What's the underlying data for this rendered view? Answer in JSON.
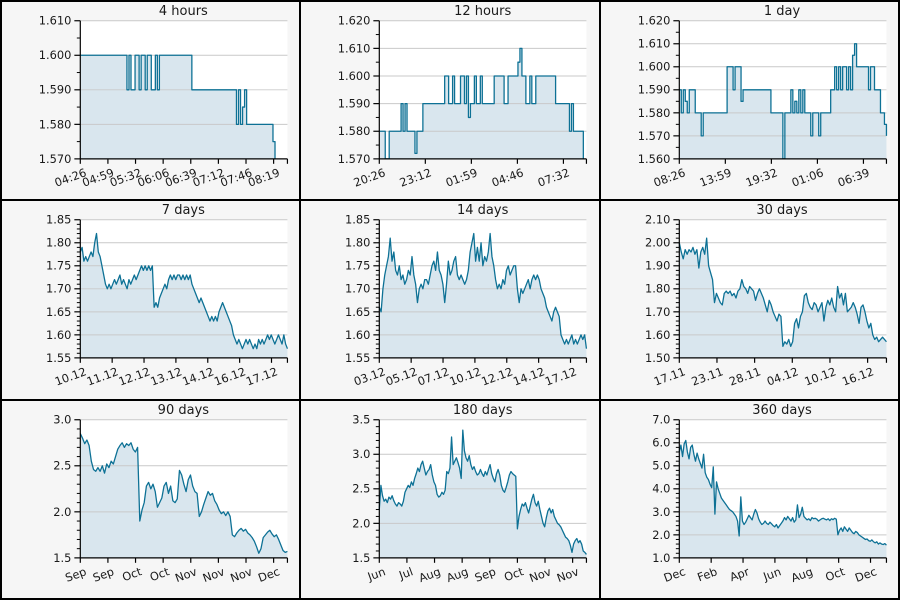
{
  "style": {
    "background": "#f6f6f6",
    "plot_background": "#ffffff",
    "line_color": "#0d7195",
    "fill_color": "#d9e6ee",
    "grid_color": "#c9c9c9",
    "axis_color": "#000000",
    "border_color": "#000000",
    "text_color": "#1a1a1a"
  },
  "chart_data": [
    {
      "type": "area",
      "title": "4 hours",
      "step": true,
      "y_min": 1.57,
      "y_max": 1.61,
      "y_ticks": [
        1.57,
        1.58,
        1.59,
        1.6,
        1.61
      ],
      "y_tick_labels": [
        "1.570",
        "1.580",
        "1.590",
        "1.600",
        "1.610"
      ],
      "y_minor_per_major": 1,
      "x_labels": [
        "04:26",
        "04:59",
        "05:32",
        "06:06",
        "06:39",
        "07:12",
        "07:46",
        "08:19"
      ],
      "x_end": 0.94,
      "grid": "horizontal",
      "values": [
        1.6,
        1.6,
        1.6,
        1.6,
        1.6,
        1.6,
        1.6,
        1.6,
        1.6,
        1.6,
        1.6,
        1.6,
        1.6,
        1.6,
        1.6,
        1.6,
        1.6,
        1.6,
        1.6,
        1.6,
        1.6,
        1.6,
        1.6,
        1.59,
        1.6,
        1.59,
        1.59,
        1.6,
        1.6,
        1.59,
        1.6,
        1.6,
        1.59,
        1.6,
        1.6,
        1.59,
        1.59,
        1.6,
        1.59,
        1.6,
        1.6,
        1.6,
        1.6,
        1.6,
        1.6,
        1.6,
        1.6,
        1.6,
        1.6,
        1.6,
        1.6,
        1.6,
        1.6,
        1.6,
        1.6,
        1.59,
        1.59,
        1.59,
        1.59,
        1.59,
        1.59,
        1.59,
        1.59,
        1.59,
        1.59,
        1.59,
        1.59,
        1.59,
        1.59,
        1.59,
        1.59,
        1.59,
        1.59,
        1.59,
        1.59,
        1.59,
        1.59,
        1.58,
        1.59,
        1.58,
        1.585,
        1.59,
        1.58,
        1.58,
        1.58,
        1.58,
        1.58,
        1.58,
        1.58,
        1.58,
        1.58,
        1.58,
        1.58,
        1.58,
        1.58,
        1.575,
        1.57
      ]
    },
    {
      "type": "area",
      "title": "12 hours",
      "step": true,
      "y_min": 1.57,
      "y_max": 1.62,
      "y_ticks": [
        1.57,
        1.58,
        1.59,
        1.6,
        1.61,
        1.62
      ],
      "y_tick_labels": [
        "1.570",
        "1.580",
        "1.590",
        "1.600",
        "1.610",
        "1.620"
      ],
      "y_minor_per_major": 1,
      "x_labels": [
        "20:26",
        "23:12",
        "01:59",
        "04:46",
        "07:32"
      ],
      "x_end": 0.985,
      "grid": "horizontal",
      "values": [
        1.58,
        1.58,
        1.58,
        1.57,
        1.57,
        1.58,
        1.58,
        1.58,
        1.58,
        1.58,
        1.58,
        1.59,
        1.58,
        1.59,
        1.58,
        1.58,
        1.58,
        1.58,
        1.572,
        1.58,
        1.58,
        1.58,
        1.59,
        1.59,
        1.59,
        1.59,
        1.59,
        1.59,
        1.59,
        1.59,
        1.59,
        1.59,
        1.59,
        1.6,
        1.6,
        1.59,
        1.59,
        1.6,
        1.59,
        1.59,
        1.59,
        1.6,
        1.6,
        1.59,
        1.6,
        1.585,
        1.59,
        1.59,
        1.6,
        1.59,
        1.59,
        1.6,
        1.59,
        1.59,
        1.59,
        1.59,
        1.59,
        1.59,
        1.6,
        1.6,
        1.6,
        1.6,
        1.6,
        1.59,
        1.59,
        1.6,
        1.6,
        1.6,
        1.6,
        1.6,
        1.605,
        1.61,
        1.6,
        1.6,
        1.59,
        1.59,
        1.6,
        1.59,
        1.59,
        1.6,
        1.6,
        1.6,
        1.6,
        1.6,
        1.6,
        1.6,
        1.6,
        1.6,
        1.6,
        1.59,
        1.59,
        1.59,
        1.59,
        1.59,
        1.59,
        1.59,
        1.58,
        1.59,
        1.58,
        1.58,
        1.58,
        1.58,
        1.58,
        1.57
      ]
    },
    {
      "type": "area",
      "title": "1 day",
      "step": true,
      "y_min": 1.56,
      "y_max": 1.62,
      "y_ticks": [
        1.56,
        1.57,
        1.58,
        1.59,
        1.6,
        1.61,
        1.62
      ],
      "y_tick_labels": [
        "1.560",
        "1.570",
        "1.580",
        "1.590",
        "1.600",
        "1.610",
        "1.620"
      ],
      "y_minor_per_major": 1,
      "x_labels": [
        "08:26",
        "13:59",
        "19:32",
        "01:06",
        "06:39"
      ],
      "x_end": 1.0,
      "grid": "horizontal",
      "values": [
        1.59,
        1.58,
        1.59,
        1.585,
        1.58,
        1.59,
        1.59,
        1.59,
        1.58,
        1.58,
        1.58,
        1.57,
        1.58,
        1.58,
        1.58,
        1.58,
        1.58,
        1.58,
        1.58,
        1.58,
        1.58,
        1.58,
        1.58,
        1.58,
        1.6,
        1.6,
        1.6,
        1.59,
        1.6,
        1.6,
        1.6,
        1.585,
        1.59,
        1.59,
        1.59,
        1.59,
        1.59,
        1.59,
        1.59,
        1.59,
        1.59,
        1.59,
        1.59,
        1.59,
        1.59,
        1.59,
        1.58,
        1.58,
        1.58,
        1.58,
        1.58,
        1.58,
        1.56,
        1.58,
        1.58,
        1.58,
        1.59,
        1.58,
        1.585,
        1.58,
        1.59,
        1.58,
        1.59,
        1.58,
        1.58,
        1.58,
        1.57,
        1.58,
        1.58,
        1.58,
        1.57,
        1.58,
        1.58,
        1.58,
        1.58,
        1.58,
        1.59,
        1.59,
        1.6,
        1.59,
        1.6,
        1.59,
        1.6,
        1.6,
        1.59,
        1.6,
        1.59,
        1.605,
        1.61,
        1.6,
        1.6,
        1.6,
        1.6,
        1.6,
        1.6,
        1.59,
        1.6,
        1.6,
        1.59,
        1.59,
        1.59,
        1.58,
        1.58,
        1.575,
        1.57
      ]
    },
    {
      "type": "area",
      "title": "7 days",
      "step": false,
      "y_min": 1.55,
      "y_max": 1.85,
      "y_ticks": [
        1.55,
        1.6,
        1.65,
        1.7,
        1.75,
        1.8,
        1.85
      ],
      "y_tick_labels": [
        "1.55",
        "1.60",
        "1.65",
        "1.70",
        "1.75",
        "1.80",
        "1.85"
      ],
      "y_minor_per_major": 4,
      "x_labels": [
        "10.12",
        "11.12",
        "12.12",
        "13.12",
        "14.12",
        "16.12",
        "17.12"
      ],
      "x_end": 1.0,
      "grid": "horizontal",
      "values": [
        1.78,
        1.79,
        1.76,
        1.77,
        1.76,
        1.77,
        1.78,
        1.77,
        1.8,
        1.82,
        1.78,
        1.77,
        1.75,
        1.73,
        1.71,
        1.7,
        1.71,
        1.7,
        1.71,
        1.72,
        1.71,
        1.72,
        1.73,
        1.71,
        1.72,
        1.71,
        1.7,
        1.72,
        1.71,
        1.72,
        1.73,
        1.72,
        1.73,
        1.74,
        1.75,
        1.74,
        1.75,
        1.74,
        1.75,
        1.74,
        1.75,
        1.66,
        1.67,
        1.66,
        1.68,
        1.69,
        1.7,
        1.71,
        1.7,
        1.72,
        1.73,
        1.72,
        1.73,
        1.72,
        1.73,
        1.73,
        1.72,
        1.73,
        1.72,
        1.73,
        1.72,
        1.73,
        1.71,
        1.7,
        1.69,
        1.68,
        1.67,
        1.68,
        1.67,
        1.66,
        1.65,
        1.64,
        1.63,
        1.64,
        1.63,
        1.64,
        1.63,
        1.65,
        1.66,
        1.67,
        1.66,
        1.65,
        1.64,
        1.63,
        1.62,
        1.6,
        1.59,
        1.58,
        1.59,
        1.58,
        1.57,
        1.58,
        1.59,
        1.58,
        1.59,
        1.58,
        1.57,
        1.58,
        1.57,
        1.59,
        1.58,
        1.59,
        1.58,
        1.59,
        1.6,
        1.59,
        1.6,
        1.59,
        1.58,
        1.59,
        1.6,
        1.59,
        1.58,
        1.6,
        1.58,
        1.57
      ]
    },
    {
      "type": "area",
      "title": "14 days",
      "step": false,
      "y_min": 1.55,
      "y_max": 1.85,
      "y_ticks": [
        1.55,
        1.6,
        1.65,
        1.7,
        1.75,
        1.8,
        1.85
      ],
      "y_tick_labels": [
        "1.55",
        "1.60",
        "1.65",
        "1.70",
        "1.75",
        "1.80",
        "1.85"
      ],
      "y_minor_per_major": 4,
      "x_labels": [
        "03.12",
        "05.12",
        "07.12",
        "10.12",
        "12.12",
        "14.12",
        "17.12"
      ],
      "x_end": 1.0,
      "grid": "horizontal",
      "values": [
        1.66,
        1.65,
        1.7,
        1.73,
        1.75,
        1.77,
        1.81,
        1.76,
        1.78,
        1.74,
        1.73,
        1.75,
        1.72,
        1.73,
        1.71,
        1.72,
        1.74,
        1.73,
        1.77,
        1.73,
        1.71,
        1.67,
        1.7,
        1.71,
        1.7,
        1.72,
        1.72,
        1.71,
        1.73,
        1.75,
        1.76,
        1.74,
        1.78,
        1.74,
        1.73,
        1.71,
        1.67,
        1.71,
        1.76,
        1.73,
        1.74,
        1.76,
        1.77,
        1.73,
        1.72,
        1.73,
        1.72,
        1.71,
        1.72,
        1.74,
        1.78,
        1.8,
        1.82,
        1.76,
        1.79,
        1.76,
        1.8,
        1.75,
        1.77,
        1.76,
        1.78,
        1.82,
        1.77,
        1.75,
        1.72,
        1.7,
        1.71,
        1.7,
        1.72,
        1.71,
        1.74,
        1.75,
        1.73,
        1.74,
        1.75,
        1.75,
        1.7,
        1.67,
        1.7,
        1.69,
        1.7,
        1.71,
        1.72,
        1.7,
        1.72,
        1.73,
        1.72,
        1.73,
        1.72,
        1.7,
        1.69,
        1.68,
        1.66,
        1.65,
        1.64,
        1.63,
        1.65,
        1.66,
        1.65,
        1.64,
        1.6,
        1.59,
        1.58,
        1.59,
        1.58,
        1.59,
        1.6,
        1.58,
        1.59,
        1.58,
        1.59,
        1.6,
        1.59,
        1.6,
        1.57
      ]
    },
    {
      "type": "area",
      "title": "30 days",
      "step": false,
      "y_min": 1.5,
      "y_max": 2.1,
      "y_ticks": [
        1.5,
        1.6,
        1.7,
        1.8,
        1.9,
        2.0,
        2.1
      ],
      "y_tick_labels": [
        "1.50",
        "1.60",
        "1.70",
        "1.80",
        "1.90",
        "2.00",
        "2.10"
      ],
      "y_minor_per_major": 4,
      "x_labels": [
        "17.11",
        "23.11",
        "28.11",
        "04.12",
        "10.12",
        "16.12"
      ],
      "x_end": 1.0,
      "grid": "horizontal",
      "values": [
        2.0,
        1.96,
        1.93,
        1.97,
        1.95,
        1.97,
        1.96,
        1.98,
        1.95,
        1.97,
        1.89,
        1.96,
        1.98,
        1.95,
        2.02,
        1.9,
        1.87,
        1.84,
        1.74,
        1.78,
        1.76,
        1.74,
        1.73,
        1.78,
        1.79,
        1.78,
        1.79,
        1.77,
        1.78,
        1.76,
        1.79,
        1.8,
        1.84,
        1.81,
        1.8,
        1.78,
        1.81,
        1.8,
        1.79,
        1.75,
        1.78,
        1.8,
        1.78,
        1.76,
        1.73,
        1.7,
        1.75,
        1.73,
        1.7,
        1.68,
        1.66,
        1.69,
        1.68,
        1.55,
        1.57,
        1.56,
        1.58,
        1.55,
        1.57,
        1.65,
        1.67,
        1.63,
        1.68,
        1.7,
        1.77,
        1.78,
        1.74,
        1.72,
        1.71,
        1.74,
        1.73,
        1.7,
        1.72,
        1.74,
        1.66,
        1.72,
        1.75,
        1.73,
        1.76,
        1.72,
        1.7,
        1.81,
        1.76,
        1.78,
        1.73,
        1.78,
        1.7,
        1.71,
        1.72,
        1.74,
        1.72,
        1.69,
        1.65,
        1.72,
        1.73,
        1.7,
        1.66,
        1.63,
        1.65,
        1.6,
        1.58,
        1.59,
        1.57,
        1.58,
        1.59,
        1.58,
        1.57
      ]
    },
    {
      "type": "area",
      "title": "90 days",
      "step": false,
      "y_min": 1.5,
      "y_max": 3.0,
      "y_ticks": [
        1.5,
        2.0,
        2.5,
        3.0
      ],
      "y_tick_labels": [
        "1.5",
        "2.0",
        "2.5",
        "3.0"
      ],
      "y_minor_per_major": 4,
      "x_labels": [
        "Sep",
        "Sep",
        "Oct",
        "Oct",
        "Nov",
        "Nov",
        "Nov",
        "Dec"
      ],
      "x_end": 1.0,
      "grid": "horizontal",
      "values": [
        2.85,
        2.8,
        2.74,
        2.78,
        2.72,
        2.55,
        2.46,
        2.44,
        2.48,
        2.44,
        2.5,
        2.42,
        2.52,
        2.48,
        2.55,
        2.52,
        2.6,
        2.68,
        2.72,
        2.75,
        2.7,
        2.74,
        2.72,
        2.75,
        2.68,
        2.65,
        2.7,
        1.9,
        2.02,
        2.1,
        2.28,
        2.32,
        2.25,
        2.3,
        2.22,
        2.05,
        2.1,
        2.15,
        2.28,
        2.32,
        2.2,
        2.28,
        2.12,
        2.1,
        2.14,
        2.45,
        2.4,
        2.3,
        2.22,
        2.35,
        2.4,
        2.28,
        2.22,
        2.2,
        1.95,
        2.0,
        2.08,
        2.15,
        2.22,
        2.18,
        2.2,
        2.12,
        2.08,
        2.02,
        1.98,
        2.0,
        1.96,
        2.0,
        1.95,
        1.75,
        1.73,
        1.77,
        1.8,
        1.82,
        1.79,
        1.81,
        1.77,
        1.75,
        1.72,
        1.68,
        1.62,
        1.55,
        1.6,
        1.72,
        1.75,
        1.78,
        1.8,
        1.76,
        1.73,
        1.75,
        1.7,
        1.64,
        1.58,
        1.56,
        1.57
      ]
    },
    {
      "type": "area",
      "title": "180 days",
      "step": false,
      "y_min": 1.5,
      "y_max": 3.5,
      "y_ticks": [
        1.5,
        2.0,
        2.5,
        3.0,
        3.5
      ],
      "y_tick_labels": [
        "1.5",
        "2.0",
        "2.5",
        "3.0",
        "3.5"
      ],
      "y_minor_per_major": 4,
      "x_labels": [
        "Jun",
        "Jul",
        "Aug",
        "Aug",
        "Sep",
        "Oct",
        "Nov",
        "Nov"
      ],
      "x_end": 1.0,
      "grid": "horizontal",
      "values": [
        2.2,
        2.55,
        2.4,
        2.32,
        2.35,
        2.3,
        2.38,
        2.35,
        2.4,
        2.33,
        2.28,
        2.25,
        2.3,
        2.28,
        2.25,
        2.32,
        2.45,
        2.5,
        2.55,
        2.52,
        2.6,
        2.55,
        2.65,
        2.72,
        2.8,
        2.75,
        2.85,
        2.9,
        2.8,
        2.7,
        2.75,
        2.78,
        2.85,
        2.7,
        2.6,
        2.55,
        2.42,
        2.38,
        2.4,
        2.45,
        2.42,
        2.48,
        2.75,
        2.72,
        2.8,
        3.25,
        2.85,
        2.9,
        2.95,
        2.88,
        2.8,
        2.65,
        3.35,
        3.05,
        2.95,
        2.9,
        2.98,
        2.85,
        2.78,
        2.82,
        2.75,
        2.7,
        2.72,
        2.78,
        2.72,
        2.68,
        2.75,
        2.7,
        2.78,
        2.85,
        2.72,
        2.65,
        2.6,
        2.72,
        2.78,
        2.7,
        2.55,
        2.48,
        2.45,
        2.52,
        2.6,
        2.7,
        2.75,
        2.72,
        2.7,
        2.68,
        1.92,
        2.1,
        2.2,
        2.28,
        2.25,
        2.3,
        2.22,
        2.15,
        2.25,
        2.35,
        2.42,
        2.3,
        2.25,
        2.32,
        2.2,
        2.1,
        2.0,
        1.95,
        2.08,
        2.18,
        2.22,
        2.15,
        2.2,
        2.1,
        2.05,
        2.0,
        1.98,
        1.95,
        1.9,
        1.85,
        1.8,
        1.78,
        1.75,
        1.68,
        1.58,
        1.7,
        1.75,
        1.78,
        1.72,
        1.75,
        1.7,
        1.6,
        1.58,
        1.55
      ]
    },
    {
      "type": "area",
      "title": "360 days",
      "step": false,
      "y_min": 1.0,
      "y_max": 7.0,
      "y_ticks": [
        1.0,
        2.0,
        3.0,
        4.0,
        5.0,
        6.0,
        7.0
      ],
      "y_tick_labels": [
        "1.0",
        "2.0",
        "3.0",
        "4.0",
        "5.0",
        "6.0",
        "7.0"
      ],
      "y_minor_per_major": 4,
      "x_labels": [
        "Dec",
        "Feb",
        "Apr",
        "Jun",
        "Aug",
        "Oct",
        "Dec"
      ],
      "x_end": 1.0,
      "grid": "horizontal",
      "values": [
        5.6,
        5.9,
        5.4,
        5.95,
        6.1,
        5.6,
        5.3,
        5.8,
        5.9,
        5.5,
        5.2,
        5.55,
        5.3,
        5.1,
        4.9,
        5.5,
        4.7,
        4.5,
        4.4,
        4.2,
        4.05,
        4.95,
        2.9,
        4.3,
        4.0,
        3.8,
        3.6,
        3.5,
        3.4,
        3.3,
        3.2,
        3.1,
        3.05,
        3.0,
        2.9,
        2.8,
        2.6,
        1.95,
        3.65,
        2.6,
        2.45,
        2.55,
        2.7,
        2.85,
        2.75,
        2.65,
        2.9,
        3.1,
        2.95,
        2.7,
        2.55,
        2.45,
        2.5,
        2.6,
        2.5,
        2.45,
        2.55,
        2.48,
        2.4,
        2.35,
        2.45,
        2.3,
        2.4,
        2.5,
        2.6,
        2.75,
        2.65,
        2.8,
        2.7,
        2.6,
        2.75,
        2.55,
        2.65,
        3.3,
        2.75,
        2.9,
        3.2,
        2.8,
        2.72,
        2.65,
        2.7,
        2.62,
        2.75,
        2.7,
        2.72,
        2.68,
        2.6,
        2.65,
        2.7,
        2.72,
        2.68,
        2.65,
        2.7,
        2.62,
        2.7,
        2.66,
        2.72,
        2.68,
        2.0,
        2.2,
        2.3,
        2.15,
        2.35,
        2.25,
        2.15,
        2.3,
        2.2,
        2.1,
        2.05,
        2.15,
        2.1,
        2.0,
        1.95,
        1.9,
        1.85,
        1.8,
        1.82,
        1.75,
        1.72,
        1.78,
        1.7,
        1.65,
        1.7,
        1.6,
        1.65,
        1.6,
        1.58,
        1.62,
        1.55
      ]
    }
  ]
}
